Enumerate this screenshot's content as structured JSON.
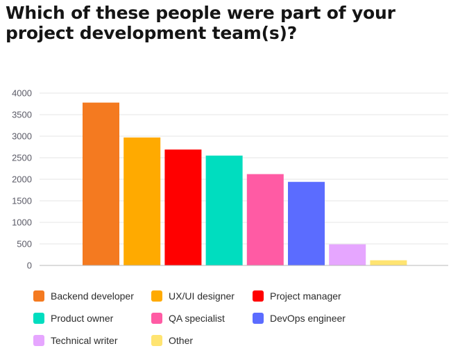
{
  "title": "Which of these people were part of your project development team(s)?",
  "chart_data": {
    "type": "bar",
    "title": "Which of these people were part of your project development team(s)?",
    "xlabel": "",
    "ylabel": "",
    "ylim": [
      0,
      4000
    ],
    "yticks": [
      0,
      500,
      1000,
      1500,
      2000,
      2500,
      3000,
      3500,
      4000
    ],
    "grid": true,
    "legend_position": "bottom",
    "categories": [
      "Backend developer",
      "UX/UI designer",
      "Project manager",
      "Product owner",
      "QA specialist",
      "DevOps engineer",
      "Technical writer",
      "Other"
    ],
    "values": [
      3780,
      2970,
      2690,
      2550,
      2120,
      1940,
      490,
      120
    ],
    "colors": [
      "#F47A20",
      "#FFAA00",
      "#FF0000",
      "#00DDBF",
      "#FF5BA4",
      "#5B6CFF",
      "#E6A6FF",
      "#FFE471"
    ]
  }
}
